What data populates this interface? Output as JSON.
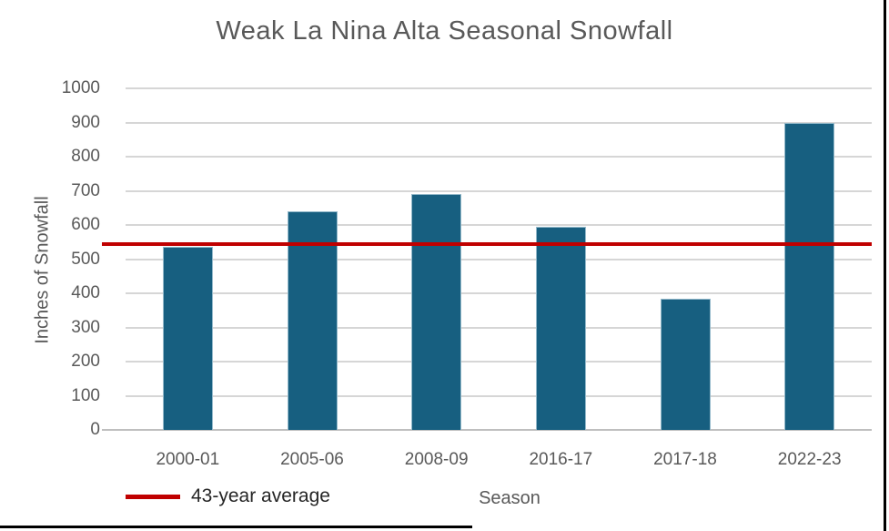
{
  "chart_data": {
    "type": "bar",
    "title": "Weak La Nina Alta Seasonal Snowfall",
    "categories": [
      "2000-01",
      "2005-06",
      "2008-09",
      "2016-17",
      "2017-18",
      "2022-23"
    ],
    "values": [
      535,
      640,
      690,
      595,
      385,
      900
    ],
    "xlabel": "Season",
    "ylabel": "Inches of Snowfall",
    "ylim": [
      0,
      1000
    ],
    "ytick_interval": 100,
    "ytick_labels": [
      "0",
      "100",
      "200",
      "300",
      "400",
      "500",
      "600",
      "700",
      "800",
      "900",
      "1000"
    ],
    "grid": true,
    "legend_position": "bottom-left",
    "average_line": {
      "label": "43-year average",
      "value": 545
    },
    "colors": {
      "bar": "#175F80",
      "bar_border": "#94B9CA",
      "average_line": "#C00000",
      "gridline": "#D6D6D6",
      "axis_line": "#BFBFBF",
      "axis_text": "#595959",
      "title_text": "#595959",
      "legend_text": "#262626"
    }
  }
}
